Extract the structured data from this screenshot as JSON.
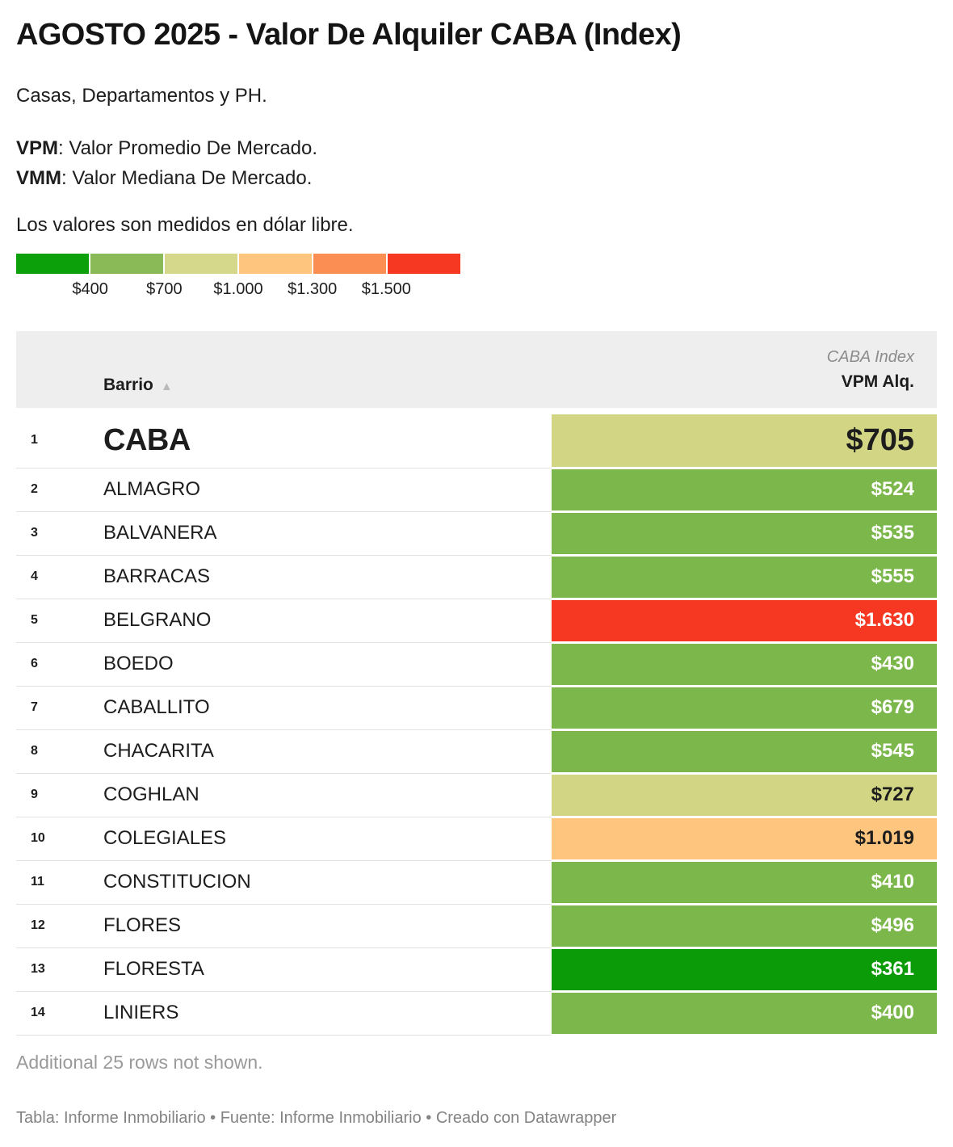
{
  "header": {
    "title": "AGOSTO 2025 - Valor De Alquiler CABA (Index)",
    "subtitle": "Casas, Departamentos y PH.",
    "definitions": [
      {
        "abbr": "VPM",
        "text": ": Valor Promedio De Mercado."
      },
      {
        "abbr": "VMM",
        "text": ": Valor Mediana De Mercado."
      }
    ],
    "note": "Los valores son medidos en dólar libre."
  },
  "legend": {
    "colors": [
      "#0ca00b",
      "#8aba57",
      "#d5d88a",
      "#fec57e",
      "#fb8e52",
      "#f63722"
    ],
    "tick_labels": [
      "$400",
      "$700",
      "$1.000",
      "$1.300",
      "$1.500"
    ]
  },
  "table": {
    "columns": {
      "barrio": "Barrio",
      "sort_icon": "▲",
      "group": "CABA Index",
      "value": "VPM Alq."
    },
    "rows": [
      {
        "rank": "1",
        "barrio": "CABA",
        "value": "$705",
        "bg": "#d2d583",
        "fg": "#1d1d1d",
        "emphasis": true
      },
      {
        "rank": "2",
        "barrio": "ALMAGRO",
        "value": "$524",
        "bg": "#7cb74c",
        "fg": "#ffffff"
      },
      {
        "rank": "3",
        "barrio": "BALVANERA",
        "value": "$535",
        "bg": "#7cb74c",
        "fg": "#ffffff"
      },
      {
        "rank": "4",
        "barrio": "BARRACAS",
        "value": "$555",
        "bg": "#7cb74c",
        "fg": "#ffffff"
      },
      {
        "rank": "5",
        "barrio": "BELGRANO",
        "value": "$1.630",
        "bg": "#f63722",
        "fg": "#ffffff"
      },
      {
        "rank": "6",
        "barrio": "BOEDO",
        "value": "$430",
        "bg": "#7cb74c",
        "fg": "#ffffff"
      },
      {
        "rank": "7",
        "barrio": "CABALLITO",
        "value": "$679",
        "bg": "#7cb74c",
        "fg": "#ffffff"
      },
      {
        "rank": "8",
        "barrio": "CHACARITA",
        "value": "$545",
        "bg": "#7cb74c",
        "fg": "#ffffff"
      },
      {
        "rank": "9",
        "barrio": "COGHLAN",
        "value": "$727",
        "bg": "#d2d583",
        "fg": "#1d1d1d"
      },
      {
        "rank": "10",
        "barrio": "COLEGIALES",
        "value": "$1.019",
        "bg": "#fec57e",
        "fg": "#1d1d1d"
      },
      {
        "rank": "11",
        "barrio": "CONSTITUCION",
        "value": "$410",
        "bg": "#7cb74c",
        "fg": "#ffffff"
      },
      {
        "rank": "12",
        "barrio": "FLORES",
        "value": "$496",
        "bg": "#7cb74c",
        "fg": "#ffffff"
      },
      {
        "rank": "13",
        "barrio": "FLORESTA",
        "value": "$361",
        "bg": "#0b9a08",
        "fg": "#ffffff"
      },
      {
        "rank": "14",
        "barrio": "LINIERS",
        "value": "$400",
        "bg": "#7cb74c",
        "fg": "#ffffff"
      }
    ]
  },
  "pagination": {
    "note": "Additional 25 rows not shown."
  },
  "footer": {
    "parts": [
      {
        "text": "Tabla: ",
        "link": false
      },
      {
        "text": "Informe Inmobiliario",
        "link": true
      },
      {
        "text": " • ",
        "link": false
      },
      {
        "text": "Fuente: ",
        "link": false
      },
      {
        "text": "Informe Inmobiliario",
        "link": true
      },
      {
        "text": " • ",
        "link": false
      },
      {
        "text": "Creado con ",
        "link": false
      },
      {
        "text": "Datawrapper",
        "link": true
      }
    ]
  },
  "chart_data": {
    "type": "table",
    "title": "AGOSTO 2025 - Valor De Alquiler CABA (Index)",
    "subtitle": "Casas, Departamentos y PH.",
    "columns": [
      "Barrio",
      "VPM Alq."
    ],
    "rows": [
      [
        "CABA",
        705
      ],
      [
        "ALMAGRO",
        524
      ],
      [
        "BALVANERA",
        535
      ],
      [
        "BARRACAS",
        555
      ],
      [
        "BELGRANO",
        1630
      ],
      [
        "BOEDO",
        430
      ],
      [
        "CABALLITO",
        679
      ],
      [
        "CHACARITA",
        545
      ],
      [
        "COGHLAN",
        727
      ],
      [
        "COLEGIALES",
        1019
      ],
      [
        "CONSTITUCION",
        410
      ],
      [
        "FLORES",
        496
      ],
      [
        "FLORESTA",
        361
      ],
      [
        "LINIERS",
        400
      ]
    ],
    "hidden_rows": 25,
    "color_scale": {
      "unit": "USD (dólar libre)",
      "ticks": [
        400,
        700,
        1000,
        1300,
        1500
      ],
      "colors": [
        "#0ca00b",
        "#8aba57",
        "#d5d88a",
        "#fec57e",
        "#fb8e52",
        "#f63722"
      ],
      "legend_position": "top-left"
    },
    "sort": {
      "column": "Barrio",
      "direction": "ascending"
    }
  }
}
